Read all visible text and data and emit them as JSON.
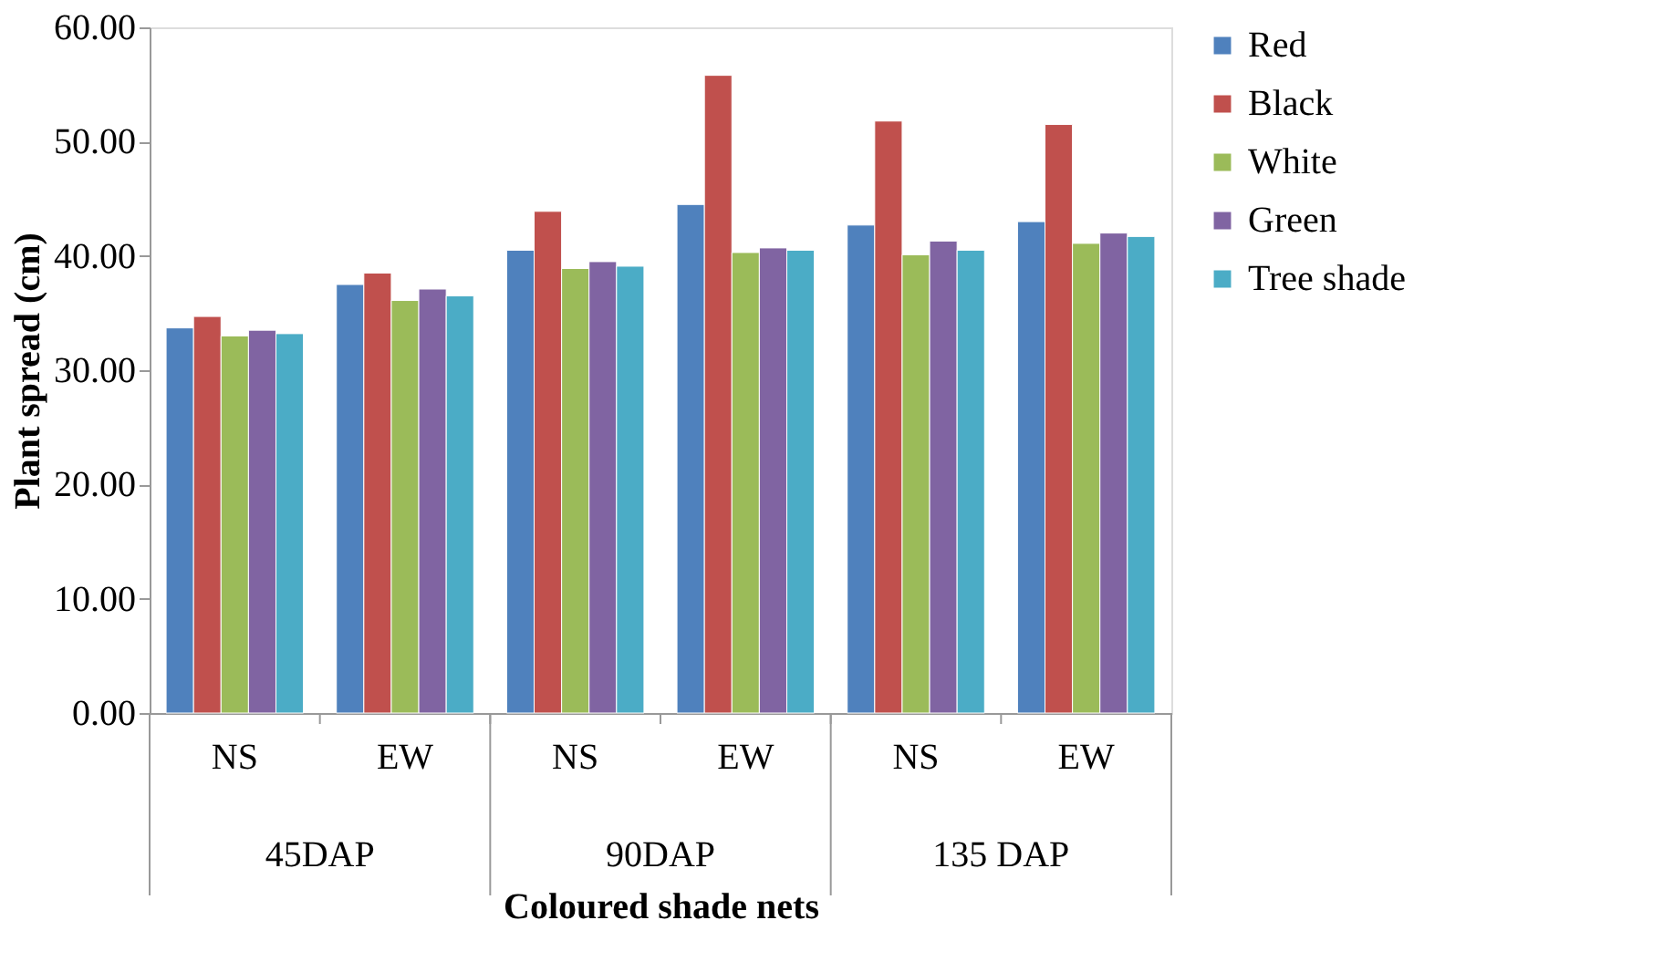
{
  "chart_data": {
    "type": "bar",
    "xlabel": "Coloured shade nets",
    "ylabel": "Plant spread (cm)",
    "categories": [
      "NS",
      "EW",
      "NS",
      "EW",
      "NS",
      "EW"
    ],
    "annotations": [
      "45DAP",
      "90DAP",
      "135 DAP"
    ],
    "series": [
      {
        "name": "Red",
        "color": "#4f81bd",
        "values": [
          33.7,
          37.5,
          40.5,
          44.5,
          42.7,
          43.0
        ]
      },
      {
        "name": "Black",
        "color": "#c0504d",
        "values": [
          34.7,
          38.5,
          43.9,
          55.8,
          51.8,
          51.5
        ]
      },
      {
        "name": "White",
        "color": "#9bbb59",
        "values": [
          33.0,
          36.1,
          38.9,
          40.3,
          40.1,
          41.1
        ]
      },
      {
        "name": "Green",
        "color": "#8064a2",
        "values": [
          33.5,
          37.1,
          39.5,
          40.7,
          41.3,
          42.0
        ]
      },
      {
        "name": "Tree shade",
        "color": "#4bacc6",
        "values": [
          33.2,
          36.5,
          39.1,
          40.5,
          40.5,
          41.7
        ]
      }
    ],
    "ylim": [
      0,
      60
    ],
    "yticks": [
      {
        "value": 0,
        "label": "0.00"
      },
      {
        "value": 10,
        "label": "10.00"
      },
      {
        "value": 20,
        "label": "20.00"
      },
      {
        "value": 30,
        "label": "30.00"
      },
      {
        "value": 40,
        "label": "40.00"
      },
      {
        "value": 50,
        "label": "50.00"
      },
      {
        "value": 60,
        "label": "60.00"
      }
    ],
    "grid": false,
    "legend": "right"
  }
}
